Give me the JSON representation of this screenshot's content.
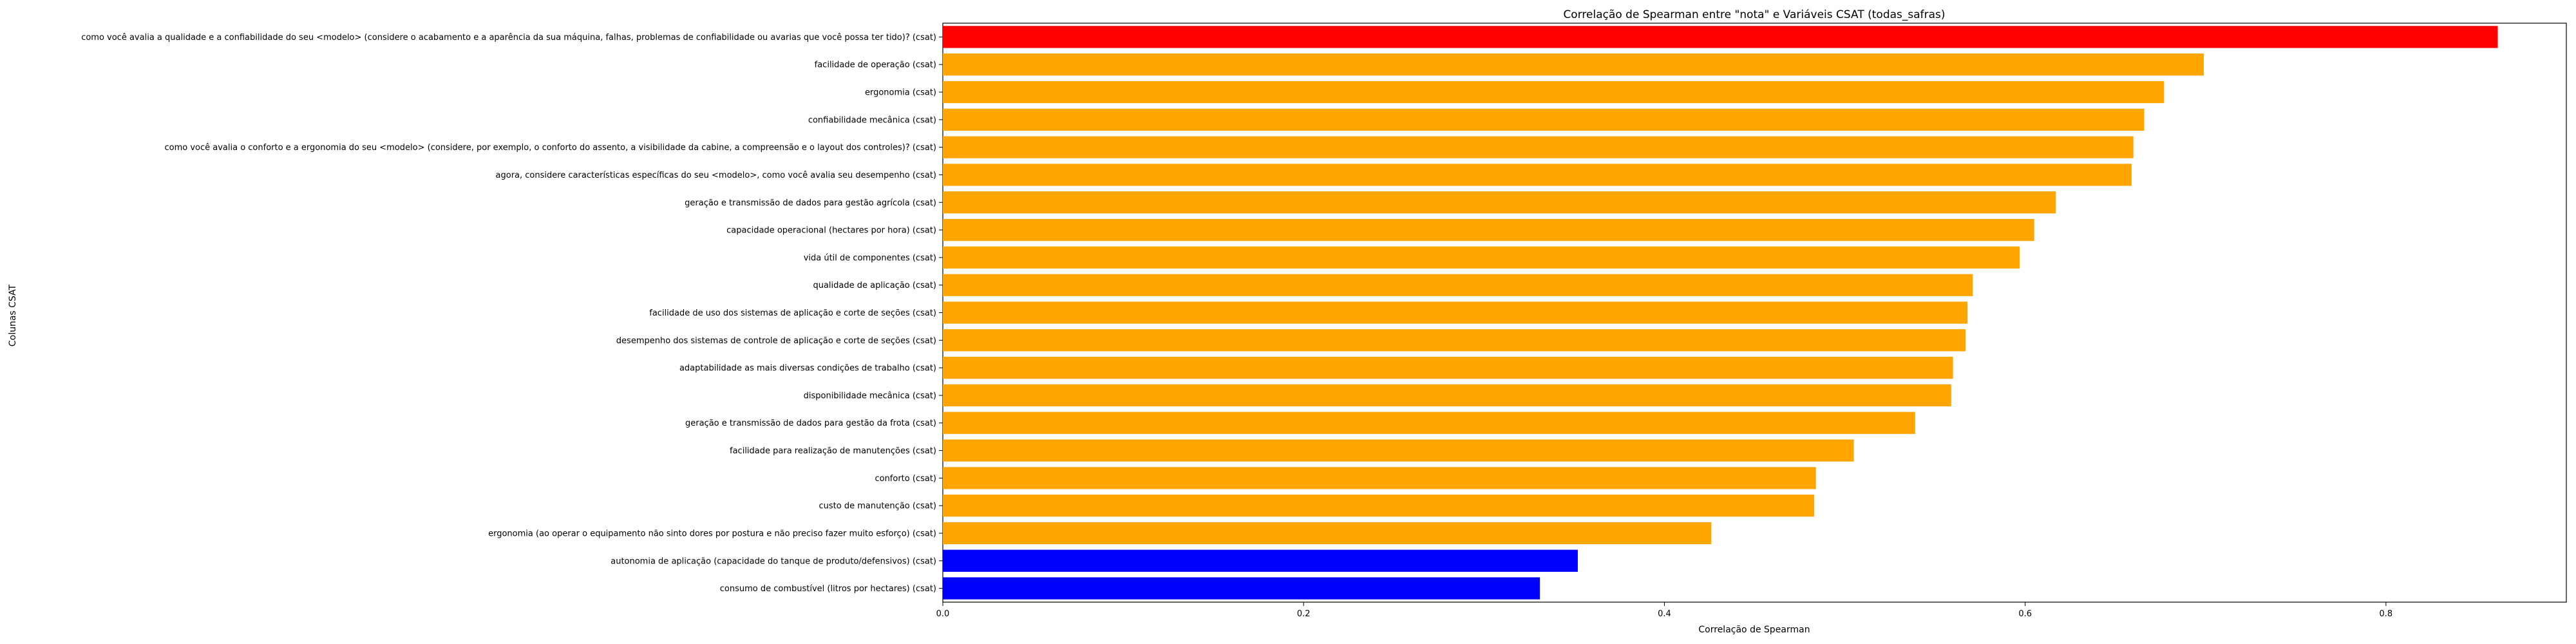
{
  "chart_data": {
    "type": "bar",
    "orientation": "horizontal",
    "title": "Correlação de Spearman entre \"nota\" e Variáveis CSAT (todas_safras)",
    "xlabel": "Correlação de Spearman",
    "ylabel": "Colunas CSAT",
    "xlim": [
      0,
      0.9
    ],
    "xticks": [
      "0.0",
      "0.2",
      "0.4",
      "0.6",
      "0.8"
    ],
    "grid": false,
    "colors": {
      "top": "#ff0000",
      "middle": "#ffa500",
      "bottom": "#0000ff"
    },
    "categories": [
      "como você avalia a qualidade e a confiabilidade do seu <modelo> (considere o acabamento e a aparência da sua máquina, falhas, problemas de confiabilidade ou avarias que você possa ter tido)? (csat)",
      "facilidade de operação (csat)",
      "ergonomia (csat)",
      "confiabilidade mecânica (csat)",
      "como você avalia o conforto e a ergonomia do seu <modelo>  (considere, por exemplo, o conforto do assento, a visibilidade da cabine, a compreensão e o layout dos controles)? (csat)",
      "agora, considere características específicas do seu <modelo>, como você avalia seu desempenho (csat)",
      "geração e transmissão de dados para gestão agrícola (csat)",
      "capacidade operacional (hectares por hora) (csat)",
      "vida útil de componentes (csat)",
      "qualidade de aplicação (csat)",
      "facilidade de uso dos sistemas de aplicação e corte de seções (csat)",
      "desempenho dos sistemas de controle de aplicação e corte de seções (csat)",
      "adaptabilidade as mais diversas condições de trabalho (csat)",
      "disponibilidade mecânica (csat)",
      "geração e transmissão de dados para gestão da frota (csat)",
      "facilidade para realização de manutenções (csat)",
      "conforto (csat)",
      "custo de manutenção (csat)",
      "ergonomia (ao operar o equipamento não sinto dores por postura e não preciso fazer muito esforço) (csat)",
      "autonomia de aplicação (capacidade do tanque de produto/defensivos) (csat)",
      "consumo de combustível (litros por hectares) (csat)"
    ],
    "values": [
      0.862,
      0.699,
      0.677,
      0.666,
      0.66,
      0.659,
      0.617,
      0.605,
      0.597,
      0.571,
      0.568,
      0.567,
      0.56,
      0.559,
      0.539,
      0.505,
      0.484,
      0.483,
      0.426,
      0.352,
      0.331
    ],
    "bar_colors": [
      "top",
      "middle",
      "middle",
      "middle",
      "middle",
      "middle",
      "middle",
      "middle",
      "middle",
      "middle",
      "middle",
      "middle",
      "middle",
      "middle",
      "middle",
      "middle",
      "middle",
      "middle",
      "middle",
      "bottom",
      "bottom"
    ]
  }
}
